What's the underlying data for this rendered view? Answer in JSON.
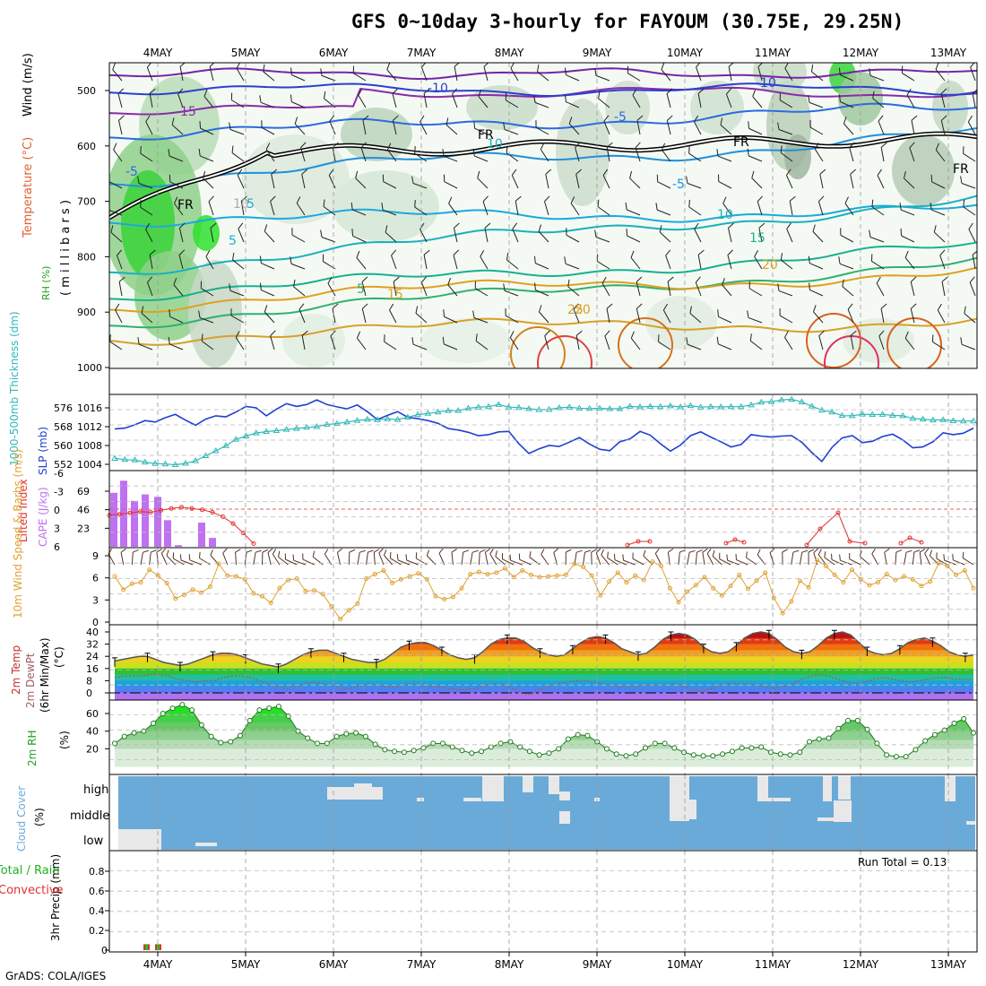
{
  "title": "GFS 0~10day 3-hourly for FAYOUM (30.75E, 29.25N)",
  "credit": "GrADS: COLA/IGES",
  "date_labels": [
    "4MAY",
    "5MAY",
    "6MAY",
    "7MAY",
    "8MAY",
    "9MAY",
    "10MAY",
    "11MAY",
    "12MAY",
    "13MAY"
  ],
  "colors": {
    "slp": "#1f3fd0",
    "thickness": "#30b8b8",
    "cape": "#c070f0",
    "lifted_index": "#e03030",
    "wind": "#e0a030",
    "rh": "#20c020",
    "cloud": "#6aaad8"
  },
  "chart_data": [
    {
      "type": "contour",
      "panel": "upper-air",
      "ylabel_parts": [
        "RH (%)",
        "Temperature (°C)",
        "Wind (m/s)"
      ],
      "axis_label": "( m i l l i b a r s )",
      "y_ticks": [
        "500",
        "600",
        "700",
        "800",
        "900",
        "1000"
      ],
      "ylim": [
        1000,
        450
      ],
      "contour_labels": [
        "-15",
        "-10",
        "-10",
        "-5",
        "-5",
        "-5",
        "5",
        "5",
        "5",
        "10",
        "10",
        "15",
        "15",
        "20",
        "20",
        "25",
        "10",
        "FR",
        "FR",
        "FR",
        "FR"
      ]
    },
    {
      "type": "line",
      "panel": "slp-thickness",
      "ylabel_left": "1000-500mb Thickness (dm)",
      "ylabel_right": "SLP (mb)",
      "y_ticks_left": [
        "576",
        "568",
        "560",
        "552"
      ],
      "y_ticks_right": [
        "1016",
        "1012",
        "1008",
        "1004"
      ],
      "series": [
        {
          "name": "SLP (mb)",
          "values": [
            1011.5,
            1011.7,
            1012.4,
            1013.3,
            1013.0,
            1013.9,
            1014.6,
            1013.4,
            1012.3,
            1013.6,
            1014.3,
            1014.1,
            1015.1,
            1016.3,
            1016.0,
            1014.3,
            1015.7,
            1016.9,
            1016.3,
            1016.7,
            1017.7,
            1016.7,
            1016.2,
            1015.8,
            1016.6,
            1015.2,
            1013.5,
            1014.4,
            1015.2,
            1014.0,
            1013.7,
            1013.3,
            1012.7,
            1011.6,
            1011.3,
            1010.8,
            1010.1,
            1010.3,
            1010.9,
            1011.0,
            1008.4,
            1006.3,
            1007.3,
            1008.0,
            1007.8,
            1008.7,
            1009.7,
            1008.3,
            1007.2,
            1006.9,
            1008.8,
            1009.4,
            1011.0,
            1010.2,
            1008.4,
            1006.8,
            1008.1,
            1010.1,
            1010.9,
            1009.8,
            1008.8,
            1007.7,
            1008.2,
            1010.3,
            1010.0,
            1009.8,
            1010.0,
            1010.1,
            1008.7,
            1006.5,
            1004.6,
            1007.6,
            1009.6,
            1010.1,
            1008.6,
            1008.9,
            1009.9,
            1010.4,
            1009.2,
            1007.5,
            1007.7,
            1008.8,
            1010.7,
            1010.3,
            1010.6,
            1011.7
          ]
        },
        {
          "name": "1000-500mb Thickness (dm)",
          "values": [
            554.5,
            554.0,
            553.8,
            552.9,
            552.3,
            552.1,
            551.8,
            552.4,
            553.5,
            555.6,
            557.7,
            559.9,
            562.6,
            564.0,
            565.3,
            565.9,
            566.3,
            566.8,
            567.2,
            567.7,
            568.0,
            568.9,
            569.3,
            570.0,
            570.6,
            571.1,
            570.9,
            571.3,
            571.0,
            572.0,
            573.1,
            573.6,
            574.2,
            574.8,
            574.8,
            575.8,
            576.3,
            576.5,
            577.4,
            576.3,
            576.1,
            575.6,
            575.2,
            575.3,
            576.0,
            576.3,
            575.8,
            575.7,
            575.8,
            575.6,
            575.6,
            576.6,
            576.4,
            576.6,
            576.5,
            576.8,
            576.4,
            576.9,
            576.3,
            576.5,
            576.4,
            576.5,
            576.5,
            577.2,
            578.4,
            578.6,
            579.4,
            579.6,
            578.5,
            576.7,
            575.0,
            574.2,
            572.7,
            572.6,
            573.3,
            573.1,
            573.2,
            572.8,
            572.6,
            571.5,
            571.2,
            570.8,
            570.9,
            570.5,
            570.4,
            570.4
          ]
        }
      ]
    },
    {
      "type": "bar",
      "panel": "cape-li",
      "ylabel_left": "Lifted Index",
      "ylabel_right": "CAPE (J/kg)",
      "y_ticks_left": [
        "-6",
        "-3",
        "0",
        "3",
        "6"
      ],
      "y_ticks_right": [
        "69",
        "46",
        "23"
      ],
      "series": [
        {
          "name": "CAPE (J/kg)",
          "values": [
            67,
            82,
            57,
            65,
            62,
            33,
            2,
            0,
            30,
            11
          ]
        },
        {
          "name": "Lifted Index",
          "values": [
            1.0,
            0.8,
            0.6,
            0.4,
            0.5,
            0.2,
            -0.1,
            -0.3,
            -0.1,
            0.1,
            0.5,
            1.2,
            2.3,
            3.8,
            5.5
          ]
        }
      ]
    },
    {
      "type": "line",
      "panel": "wind",
      "ylabel": "10m Wind Speed & Barbs (m/s)",
      "y_ticks": [
        "9",
        "6",
        "3",
        "0"
      ],
      "series": [
        {
          "name": "10m Wind Speed",
          "values": [
            6.2,
            4.4,
            5.2,
            5.4,
            7.1,
            6.3,
            5.3,
            3.2,
            3.7,
            4.4,
            4.0,
            4.8,
            7.9,
            6.3,
            6.2,
            5.8,
            3.9,
            3.5,
            2.6,
            4.6,
            5.7,
            5.9,
            4.2,
            4.3,
            3.8,
            2.1,
            0.4,
            1.6,
            2.5,
            5.9,
            6.5,
            7.0,
            5.3,
            5.8,
            6.2,
            6.6,
            5.8,
            3.5,
            3.1,
            3.4,
            4.6,
            6.5,
            6.8,
            6.5,
            6.7,
            7.3,
            6.1,
            7.0,
            6.4,
            6.1,
            6.2,
            6.3,
            6.4,
            7.9,
            7.5,
            6.3,
            3.6,
            5.5,
            6.7,
            5.4,
            6.3,
            5.7,
            8.2,
            7.6,
            4.6,
            2.7,
            4.1,
            5.0,
            6.1,
            4.6,
            3.6,
            4.9,
            6.4,
            4.5,
            5.6,
            6.7,
            3.3,
            1.2,
            2.8,
            5.6,
            4.7,
            8.4,
            7.6,
            6.4,
            5.4,
            7.1,
            5.8,
            5.0,
            5.4,
            6.5,
            5.7,
            6.2,
            5.8,
            4.9,
            5.5,
            8.0,
            7.6,
            6.4,
            7.0,
            4.6
          ]
        }
      ]
    },
    {
      "type": "area",
      "panel": "temperature",
      "ylabel": "2m Temp 2m DewPt (6hr Min/Max) (°C)",
      "y_ticks": [
        "40",
        "32",
        "24",
        "16",
        "8",
        "0"
      ],
      "series": [
        {
          "name": "2m Temp",
          "values": [
            21,
            22,
            23,
            24,
            24,
            22,
            20,
            19,
            18,
            19,
            21,
            23,
            25,
            26,
            26,
            25,
            23,
            21,
            19,
            18,
            17,
            19,
            22,
            25,
            27,
            28,
            28,
            26,
            24,
            22,
            21,
            20,
            20,
            22,
            26,
            30,
            32,
            33,
            33,
            31,
            28,
            25,
            23,
            22,
            23,
            27,
            32,
            35,
            36,
            36,
            34,
            30,
            27,
            25,
            24,
            25,
            29,
            33,
            36,
            37,
            36,
            33,
            29,
            27,
            25,
            26,
            30,
            35,
            38,
            39,
            38,
            35,
            30,
            27,
            26,
            27,
            31,
            36,
            39,
            40,
            39,
            35,
            30,
            27,
            26,
            27,
            31,
            36,
            39,
            40,
            38,
            33,
            28,
            26,
            25,
            26,
            29,
            33,
            35,
            36,
            34,
            31,
            27,
            25,
            24,
            25
          ]
        },
        {
          "name": "2m DewPt",
          "values": [
            10,
            11,
            11,
            11,
            12,
            12,
            11,
            9,
            8,
            7,
            8,
            8,
            10,
            11,
            11,
            10,
            8,
            6,
            4,
            3,
            4,
            6,
            7,
            6,
            5,
            3,
            3,
            4,
            6,
            5,
            4,
            4,
            5,
            6,
            5,
            4,
            4,
            3,
            2,
            2,
            3,
            5,
            6,
            5,
            3,
            0,
            -1,
            2,
            4,
            6,
            7,
            8,
            8,
            7,
            6,
            5,
            4,
            4,
            5,
            5,
            5,
            5,
            6,
            4,
            2,
            1,
            3,
            5,
            6,
            6,
            6,
            5,
            4,
            3,
            4,
            6,
            9,
            11,
            12,
            11,
            9,
            7,
            6,
            7,
            9,
            10,
            9,
            8,
            7,
            8,
            9,
            10,
            10,
            9,
            9,
            9
          ]
        }
      ]
    },
    {
      "type": "area",
      "panel": "rh",
      "ylabel": "2m RH (%)",
      "y_ticks": [
        "60",
        "40",
        "20"
      ],
      "series": [
        {
          "name": "2m RH",
          "values": [
            26,
            34,
            38,
            40,
            49,
            60,
            66,
            70,
            64,
            47,
            34,
            27,
            28,
            35,
            52,
            64,
            66,
            68,
            57,
            40,
            32,
            26,
            26,
            34,
            37,
            38,
            34,
            25,
            19,
            17,
            16,
            18,
            21,
            26,
            26,
            22,
            18,
            15,
            17,
            22,
            26,
            28,
            22,
            17,
            13,
            15,
            20,
            31,
            36,
            35,
            28,
            20,
            14,
            12,
            14,
            21,
            26,
            26,
            21,
            16,
            13,
            12,
            12,
            14,
            17,
            21,
            21,
            22,
            16,
            14,
            13,
            16,
            28,
            31,
            32,
            43,
            52,
            52,
            42,
            26,
            13,
            11,
            11,
            19,
            29,
            36,
            41,
            49,
            54,
            38
          ]
        }
      ]
    },
    {
      "type": "area",
      "panel": "cloud",
      "ylabel": "Cloud Cover (%)",
      "y_ticks": [
        "high",
        "middle",
        "low"
      ]
    },
    {
      "type": "bar",
      "panel": "precip",
      "ylabel": "3hr Precip (mm)",
      "legend": [
        "Total / Rain",
        "Convective"
      ],
      "annotation": "Run Total = 0.13",
      "y_ticks": [
        "0.8",
        "0.6",
        "0.4",
        "0.2",
        "0"
      ],
      "ylim": [
        0,
        1.0
      ],
      "series": [
        {
          "name": "Total / Rain",
          "values": [
            0.06,
            0.06
          ]
        },
        {
          "name": "Convective",
          "values": [
            0.06,
            0.06
          ]
        }
      ]
    }
  ]
}
